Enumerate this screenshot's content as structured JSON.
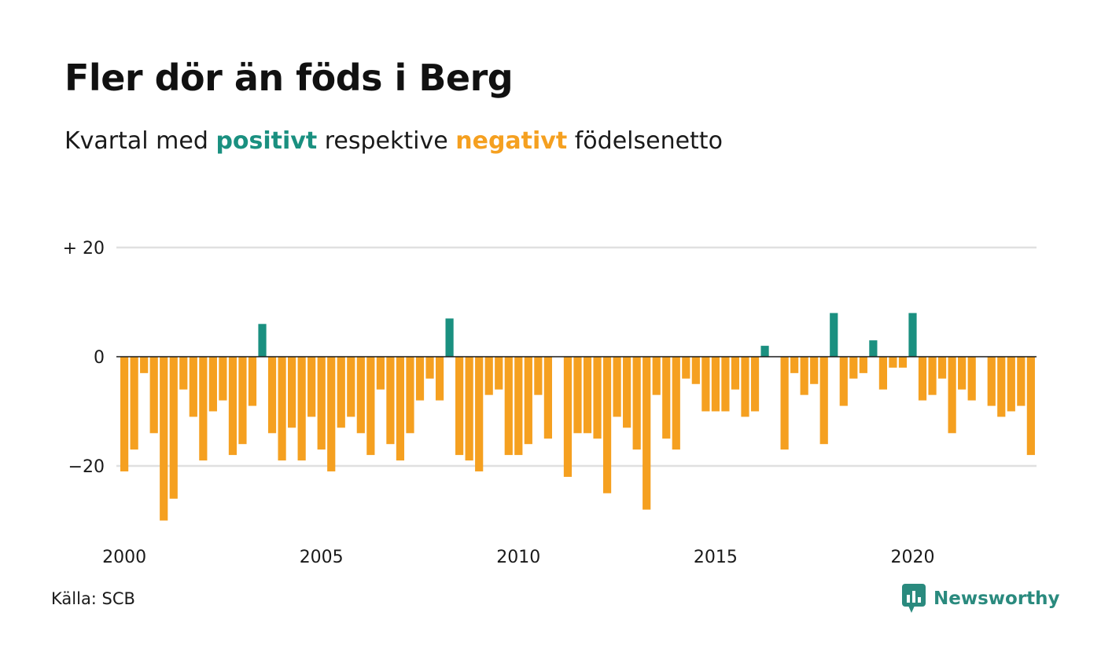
{
  "header": {
    "title": "Fler dör än föds i Berg",
    "subtitle_prefix": "Kvartal med",
    "subtitle_positive": "positivt",
    "subtitle_middle": "respektive",
    "subtitle_negative": "negativt",
    "subtitle_suffix": "födelsenetto"
  },
  "footer": {
    "source": "Källa: SCB",
    "brand": "Newsworthy"
  },
  "colors": {
    "positive": "#1a9080",
    "negative": "#f5a020",
    "grid": "#e0e0e0",
    "zero_line": "#1a1a1a",
    "brand": "#2a8a7e"
  },
  "chart_data": {
    "type": "bar",
    "x_start": "2000 Q1",
    "frequency": "quarterly",
    "ylim": [
      -33,
      20
    ],
    "y_ticks": [
      {
        "value": 20,
        "label": "+ 20"
      },
      {
        "value": 0,
        "label": "0"
      },
      {
        "value": -20,
        "label": "−20"
      }
    ],
    "x_ticks": [
      {
        "index": 0,
        "label": "2000"
      },
      {
        "index": 20,
        "label": "2005"
      },
      {
        "index": 40,
        "label": "2010"
      },
      {
        "index": 60,
        "label": "2015"
      },
      {
        "index": 80,
        "label": "2020"
      }
    ],
    "grid": true,
    "values": [
      -21,
      -17,
      -3,
      -14,
      -30,
      -26,
      -6,
      -11,
      -19,
      -10,
      -8,
      -18,
      -16,
      -9,
      6,
      -14,
      -19,
      -13,
      -19,
      -11,
      -17,
      -21,
      -13,
      -11,
      -14,
      -18,
      -6,
      -16,
      -19,
      -14,
      -8,
      -4,
      -8,
      7,
      -18,
      -19,
      -21,
      -7,
      -6,
      -18,
      -18,
      -16,
      -7,
      -15,
      0,
      -22,
      -14,
      -14,
      -15,
      -25,
      -11,
      -13,
      -17,
      -28,
      -7,
      -15,
      -17,
      -4,
      -5,
      -10,
      -10,
      -10,
      -6,
      -11,
      -10,
      2,
      0,
      -17,
      -3,
      -7,
      -5,
      -16,
      8,
      -9,
      -4,
      -3,
      3,
      -6,
      -2,
      -2,
      8,
      -8,
      -7,
      -4,
      -14,
      -6,
      -8,
      0,
      -9,
      -11,
      -10,
      -9,
      -18
    ]
  }
}
